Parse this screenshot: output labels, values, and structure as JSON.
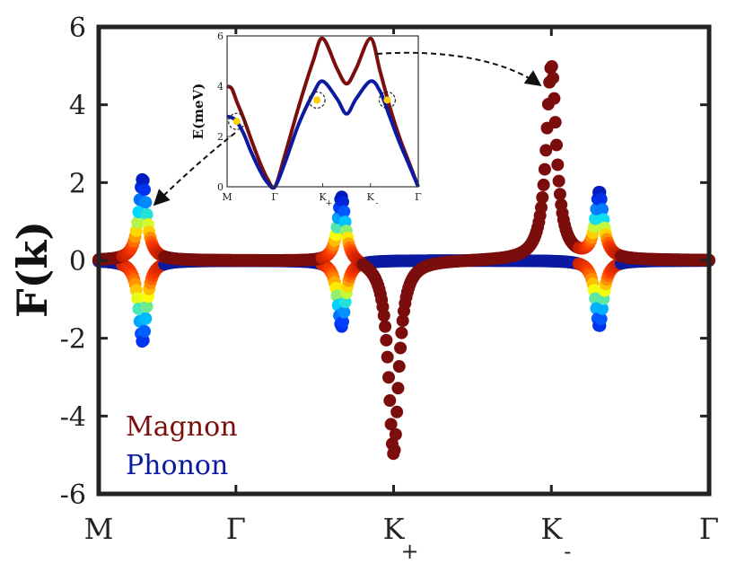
{
  "chart_data": [
    {
      "type": "scatter",
      "ylabel": "F(k)",
      "xlabel": "",
      "ylim": [
        -6,
        6
      ],
      "yticks": [
        "6",
        "4",
        "2",
        "0",
        "-2",
        "-4",
        "-6"
      ],
      "yticks_values": [
        6,
        4,
        2,
        0,
        -2,
        -4,
        -6
      ],
      "xtick_labels": [
        {
          "main": "M",
          "sub": ""
        },
        {
          "main": "Γ",
          "sub": ""
        },
        {
          "main": "K",
          "sub": "+"
        },
        {
          "main": "K",
          "sub": "-"
        },
        {
          "main": "Γ",
          "sub": ""
        }
      ],
      "xtick_positions": [
        0,
        1,
        2.15,
        3.3,
        4.45
      ],
      "legend": [
        {
          "name": "Magnon",
          "color": "#7b0d0d"
        },
        {
          "name": "Phonon",
          "color": "#0b1aa0"
        }
      ],
      "legend_placement": "bottom-left",
      "grid": false,
      "series": [
        {
          "name": "Magnon",
          "description": "Berry-curvature peaks of magnon band",
          "peaks": [
            {
              "x": 0.32,
              "value": 2.1,
              "hybrid": true
            },
            {
              "x": 1.77,
              "value": 1.7,
              "hybrid": true
            },
            {
              "x": 2.15,
              "value": -5.0,
              "hybrid": false
            },
            {
              "x": 3.3,
              "value": 5.0,
              "hybrid": false
            },
            {
              "x": 3.65,
              "value": 1.7,
              "hybrid": true
            }
          ]
        },
        {
          "name": "Phonon",
          "description": "Berry-curvature peaks of phonon band",
          "peaks": [
            {
              "x": 0.32,
              "value": -2.1,
              "hybrid": true
            },
            {
              "x": 1.77,
              "value": -1.7,
              "hybrid": true
            },
            {
              "x": 3.65,
              "value": -1.7,
              "hybrid": true
            }
          ]
        }
      ],
      "colors": {
        "magnon": "#7b0d0d",
        "phonon": "#0b1aa0",
        "axis": "#222222"
      }
    },
    {
      "type": "line",
      "title": "",
      "ylabel": "E(meV)",
      "ylim": [
        0,
        6
      ],
      "yticks": [
        "6",
        "4",
        "2",
        "0"
      ],
      "yticks_values": [
        6,
        4,
        2,
        0
      ],
      "xtick_labels": [
        {
          "main": "M",
          "sub": ""
        },
        {
          "main": "Γ",
          "sub": ""
        },
        {
          "main": "K",
          "sub": "+"
        },
        {
          "main": "K",
          "sub": "-"
        },
        {
          "main": "Γ",
          "sub": ""
        }
      ],
      "xtick_positions": [
        0,
        1,
        2,
        3,
        4
      ],
      "series": [
        {
          "name": "Magnon",
          "color": "#7b0d0d",
          "x": [
            0,
            0.1,
            0.2,
            0.35,
            0.5,
            0.7,
            0.85,
            1.0,
            1.2,
            1.5,
            1.8,
            2.0,
            2.3,
            2.5,
            2.7,
            3.0,
            3.2,
            3.4,
            3.6,
            3.8,
            4.0
          ],
          "y": [
            4.0,
            3.9,
            3.4,
            2.7,
            1.9,
            0.9,
            0.3,
            0.0,
            1.2,
            3.2,
            5.0,
            5.9,
            4.7,
            4.1,
            4.7,
            5.9,
            4.6,
            3.2,
            2.0,
            1.0,
            0.0
          ]
        },
        {
          "name": "Phonon",
          "color": "#0b1aa0",
          "x": [
            0,
            0.1,
            0.2,
            0.35,
            0.5,
            0.7,
            0.85,
            1.0,
            1.2,
            1.5,
            1.8,
            2.0,
            2.3,
            2.5,
            2.7,
            3.0,
            3.2,
            3.4,
            3.6,
            3.8,
            4.0
          ],
          "y": [
            2.8,
            2.75,
            2.6,
            2.1,
            1.4,
            0.6,
            0.15,
            0.0,
            0.9,
            2.5,
            3.7,
            4.2,
            3.5,
            2.9,
            3.5,
            4.2,
            3.8,
            2.8,
            1.8,
            0.9,
            0.0
          ]
        }
      ],
      "highlighted_crossings": [
        {
          "x": 0.2,
          "y": 2.6
        },
        {
          "x": 1.88,
          "y": 3.45
        },
        {
          "x": 3.35,
          "y": 3.45
        }
      ]
    }
  ]
}
